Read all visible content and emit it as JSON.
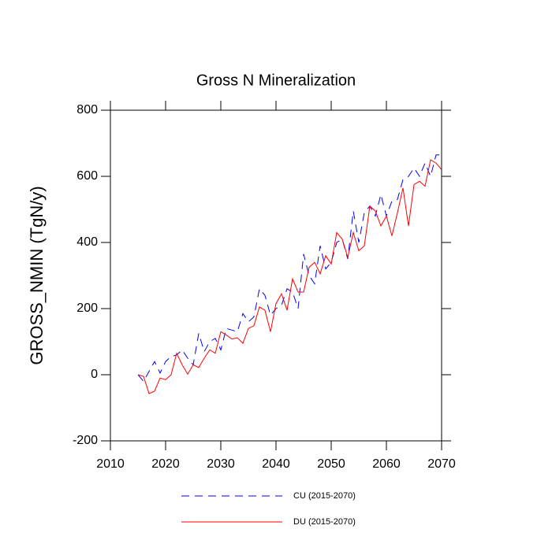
{
  "chart_data": {
    "type": "line",
    "title": "Gross N Mineralization",
    "y_label": "GROSS_NMIN  (TgN/y)",
    "x": [
      2015,
      2016,
      2017,
      2018,
      2019,
      2020,
      2021,
      2022,
      2023,
      2024,
      2025,
      2026,
      2027,
      2028,
      2029,
      2030,
      2031,
      2032,
      2033,
      2034,
      2035,
      2036,
      2037,
      2038,
      2039,
      2040,
      2041,
      2042,
      2043,
      2044,
      2045,
      2046,
      2047,
      2048,
      2049,
      2050,
      2051,
      2052,
      2053,
      2054,
      2055,
      2056,
      2057,
      2058,
      2059,
      2060,
      2061,
      2062,
      2063,
      2064,
      2065,
      2066,
      2067,
      2068,
      2069,
      2070
    ],
    "series": [
      {
        "name": "CU (2015-2070)",
        "color": "#0000ff",
        "dashed": true,
        "values": [
          0,
          -20,
          10,
          40,
          5,
          40,
          55,
          60,
          75,
          50,
          30,
          125,
          70,
          100,
          110,
          75,
          140,
          135,
          130,
          185,
          160,
          175,
          260,
          240,
          180,
          200,
          210,
          260,
          250,
          200,
          365,
          300,
          275,
          390,
          320,
          340,
          400,
          410,
          350,
          495,
          400,
          490,
          510,
          480,
          545,
          480,
          525,
          530,
          590,
          600,
          625,
          600,
          640,
          600,
          665,
          665
        ]
      },
      {
        "name": "DU (2015-2070)",
        "color": "#ff0000",
        "dashed": false,
        "values": [
          0,
          -5,
          -57,
          -50,
          -10,
          -15,
          0,
          65,
          30,
          2,
          30,
          22,
          50,
          75,
          65,
          130,
          120,
          108,
          112,
          95,
          140,
          148,
          205,
          195,
          130,
          215,
          245,
          195,
          290,
          250,
          250,
          325,
          340,
          305,
          360,
          335,
          430,
          410,
          355,
          430,
          375,
          390,
          510,
          495,
          450,
          480,
          420,
          490,
          565,
          450,
          575,
          585,
          570,
          650,
          640,
          620
        ]
      }
    ],
    "xlim": [
      2010,
      2070
    ],
    "xticks": [
      2010,
      2020,
      2030,
      2040,
      2050,
      2060,
      2070
    ],
    "ylim": [
      -200,
      800
    ],
    "yticks": [
      -200,
      0,
      200,
      400,
      600,
      800
    ]
  }
}
